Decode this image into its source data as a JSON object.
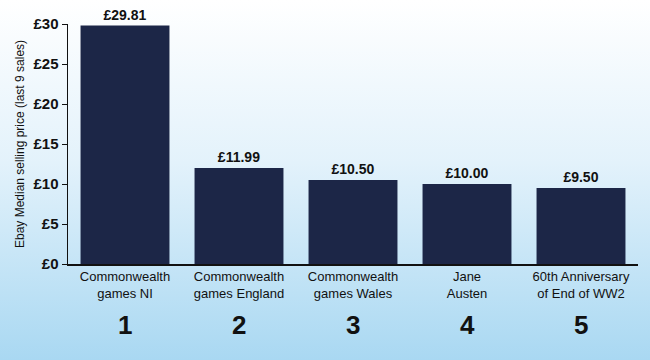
{
  "chart_data": {
    "type": "bar",
    "y_label": "Ebay Median selling price (last 9 sales)",
    "categories": [
      "Commonwealth games NI",
      "Commonwealth games England",
      "Commonwealth games Wales",
      "Jane Austen",
      "60th Anniversary of End of WW2"
    ],
    "values": [
      29.81,
      11.99,
      10.5,
      10.0,
      9.5
    ],
    "value_labels": [
      "£29.81",
      "£11.99",
      "£10.50",
      "£10.00",
      "£9.50"
    ],
    "ranks": [
      1,
      2,
      3,
      4,
      5
    ],
    "color": "#1c2647",
    "ylim": [
      0,
      30
    ],
    "yticks": [
      {
        "value": 0,
        "label": "£0"
      },
      {
        "value": 5,
        "label": "£5"
      },
      {
        "value": 10,
        "label": "£10"
      },
      {
        "value": 15,
        "label": "£15"
      },
      {
        "value": 20,
        "label": "£20"
      },
      {
        "value": 25,
        "label": "£25"
      },
      {
        "value": 30,
        "label": "£30"
      }
    ],
    "grid": false,
    "data_labels": true
  }
}
